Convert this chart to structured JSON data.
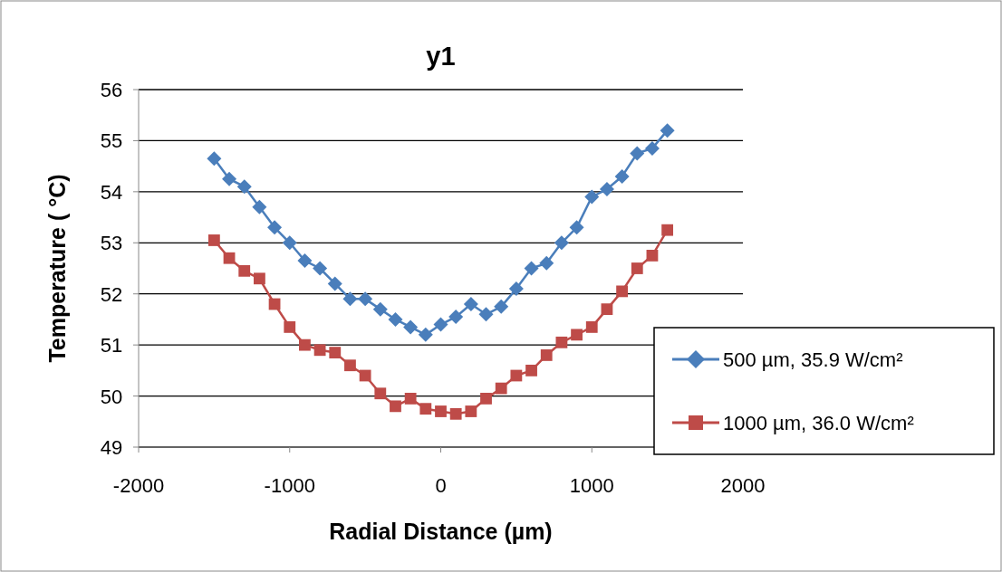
{
  "chart_data": {
    "type": "line",
    "title": "y1",
    "xlabel": "Radial Distance (µm)",
    "ylabel": "Temperature ( °C)",
    "x": [
      -1500,
      -1400,
      -1300,
      -1200,
      -1100,
      -1000,
      -900,
      -800,
      -700,
      -600,
      -500,
      -400,
      -300,
      -200,
      -100,
      0,
      100,
      200,
      300,
      400,
      500,
      600,
      700,
      800,
      900,
      1000,
      1100,
      1200,
      1300,
      1400,
      1500
    ],
    "series": [
      {
        "name": "500 µm, 35.9 W/cm²",
        "color": "#4a7ebb",
        "marker": "diamond",
        "values": [
          54.65,
          54.25,
          54.1,
          53.7,
          53.3,
          53.0,
          52.65,
          52.5,
          52.2,
          51.9,
          51.9,
          51.7,
          51.5,
          51.35,
          51.2,
          51.4,
          51.55,
          51.8,
          51.6,
          51.75,
          52.1,
          52.5,
          52.6,
          53.0,
          53.3,
          53.9,
          54.05,
          54.3,
          54.75,
          54.85,
          55.2
        ]
      },
      {
        "name": "1000 µm, 36.0 W/cm²",
        "color": "#be4b48",
        "marker": "square",
        "values": [
          53.05,
          52.7,
          52.45,
          52.3,
          51.8,
          51.35,
          51.0,
          50.9,
          50.85,
          50.6,
          50.4,
          50.05,
          49.8,
          49.95,
          49.75,
          49.7,
          49.65,
          49.7,
          49.95,
          50.15,
          50.4,
          50.5,
          50.8,
          51.05,
          51.2,
          51.35,
          51.7,
          52.05,
          52.5,
          52.75,
          53.25
        ]
      }
    ],
    "xlim": [
      -2000,
      2000
    ],
    "xticks": [
      -2000,
      -1000,
      0,
      1000,
      2000
    ],
    "ylim": [
      49,
      56
    ],
    "yticks": [
      49,
      50,
      51,
      52,
      53,
      54,
      55,
      56
    ],
    "grid": "y",
    "legend": "right",
    "line_style": "solid"
  }
}
